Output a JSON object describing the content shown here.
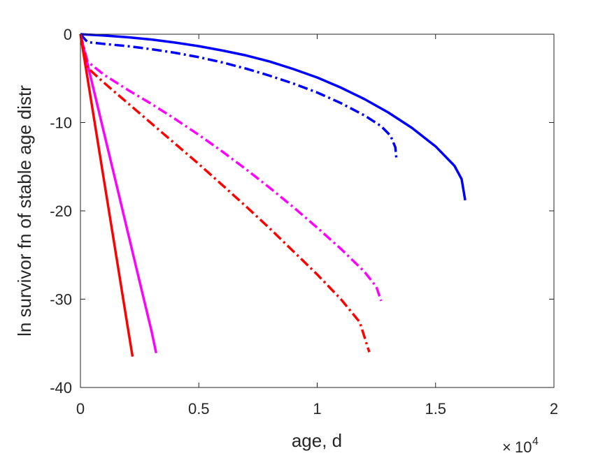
{
  "chart_data": {
    "type": "line",
    "title": "",
    "xlabel": "age, d",
    "ylabel": "ln survivor fn of stable age distr",
    "xlim": [
      0,
      20000
    ],
    "ylim": [
      -40,
      0
    ],
    "x_multiplier": {
      "times": "×",
      "base": "10",
      "exponent": "4"
    },
    "xticks": [
      0,
      5000,
      10000,
      15000,
      20000
    ],
    "xtick_labels": [
      "0",
      "0.5",
      "1",
      "1.5",
      "2"
    ],
    "yticks": [
      0,
      -10,
      -20,
      -30,
      -40
    ],
    "ytick_labels": [
      "0",
      "-10",
      "-20",
      "-30",
      "-40"
    ],
    "grid": false,
    "legend": null,
    "series": [
      {
        "color": "#0000ff",
        "style": "solid",
        "x": [
          0,
          1000,
          2000,
          3000,
          4000,
          5000,
          6000,
          7000,
          8000,
          9000,
          10000,
          11000,
          12000,
          13000,
          14000,
          15000,
          15800,
          16100,
          16250
        ],
        "y": [
          0,
          -0.15,
          -0.35,
          -0.6,
          -0.95,
          -1.35,
          -1.85,
          -2.4,
          -3.1,
          -3.95,
          -4.9,
          -6.05,
          -7.35,
          -8.85,
          -10.6,
          -12.7,
          -14.9,
          -16.4,
          -18.8
        ]
      },
      {
        "color": "#0000ff",
        "style": "dashdot",
        "x": [
          0,
          300,
          1000,
          2000,
          3000,
          4000,
          5000,
          6000,
          7000,
          8000,
          9000,
          10000,
          11000,
          12000,
          12700,
          13100,
          13300,
          13350
        ],
        "y": [
          0,
          -0.9,
          -1.1,
          -1.35,
          -1.7,
          -2.1,
          -2.6,
          -3.2,
          -3.9,
          -4.7,
          -5.6,
          -6.6,
          -7.8,
          -9.2,
          -10.4,
          -11.5,
          -12.8,
          -14.2
        ]
      },
      {
        "color": "#ff00ff",
        "style": "solid",
        "x": [
          0,
          500,
          1000,
          1500,
          2000,
          2500,
          3000,
          3200
        ],
        "y": [
          0,
          -5.6,
          -11.2,
          -16.8,
          -22.4,
          -28.0,
          -33.6,
          -36.1
        ]
      },
      {
        "color": "#ff00ff",
        "style": "dashdot",
        "x": [
          0,
          300,
          1000,
          2000,
          3000,
          4000,
          5000,
          6000,
          7000,
          8000,
          9000,
          10000,
          11000,
          12000,
          12500,
          12700
        ],
        "y": [
          0,
          -3.1,
          -4.6,
          -6.3,
          -7.9,
          -9.6,
          -11.4,
          -13.3,
          -15.3,
          -17.4,
          -19.6,
          -21.9,
          -24.3,
          -26.9,
          -28.6,
          -30.2
        ]
      },
      {
        "color": "#ff0000",
        "style": "solid",
        "x": [
          0,
          500,
          1000,
          1500,
          2000,
          2200
        ],
        "y": [
          0,
          -8.3,
          -16.6,
          -24.9,
          -33.2,
          -36.5
        ]
      },
      {
        "color": "#ff0000",
        "style": "dashdot",
        "x": [
          0,
          300,
          1000,
          2000,
          3000,
          4000,
          5000,
          6000,
          7000,
          8000,
          9000,
          10000,
          11000,
          11800,
          12200
        ],
        "y": [
          0,
          -3.8,
          -5.5,
          -7.8,
          -10.1,
          -12.4,
          -14.7,
          -17.1,
          -19.5,
          -22.0,
          -24.6,
          -27.2,
          -30.0,
          -32.6,
          -36.0
        ]
      }
    ]
  }
}
